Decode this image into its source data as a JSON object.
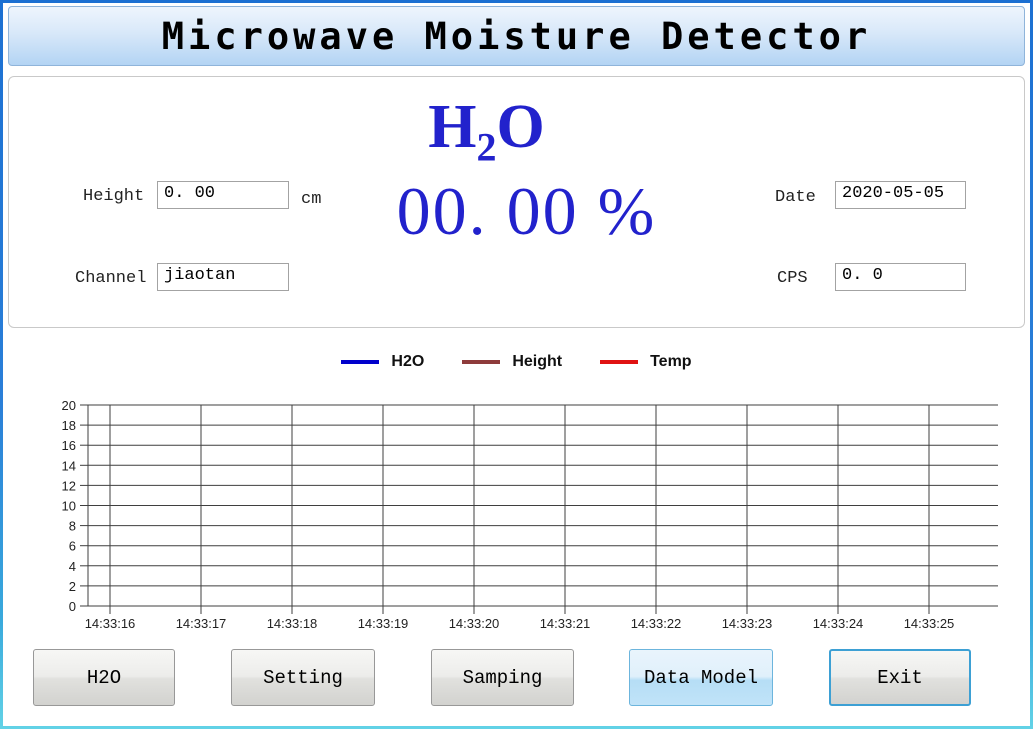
{
  "window": {
    "title": "Microwave Moisture Detector"
  },
  "readout": {
    "formula_main": "H",
    "formula_sub": "2",
    "formula_tail": "O",
    "value": "00. 00 %"
  },
  "fields": {
    "height": {
      "label": "Height",
      "value": "0. 00",
      "unit": "cm"
    },
    "channel": {
      "label": "Channel",
      "value": "jiaotan"
    },
    "date": {
      "label": "Date",
      "value": "2020-05-05"
    },
    "cps": {
      "label": "CPS",
      "value": "0. 0"
    }
  },
  "legend": [
    {
      "label": "H2O",
      "color": "#0000CC"
    },
    {
      "label": "Height",
      "color": "#8E3B3B"
    },
    {
      "label": "Temp",
      "color": "#E01212"
    }
  ],
  "chart_data": {
    "type": "line",
    "title": "",
    "xlabel": "",
    "ylabel": "",
    "ylim": [
      0,
      20
    ],
    "y_ticks": [
      0,
      2,
      4,
      6,
      8,
      10,
      12,
      14,
      16,
      18,
      20
    ],
    "x_ticks": [
      "14:33:16",
      "14:33:17",
      "14:33:18",
      "14:33:19",
      "14:33:20",
      "14:33:21",
      "14:33:22",
      "14:33:23",
      "14:33:24",
      "14:33:25"
    ],
    "grid": true,
    "legend_position": "top-center",
    "series": [
      {
        "name": "H2O",
        "color": "#0000CC",
        "values": []
      },
      {
        "name": "Height",
        "color": "#8E3B3B",
        "values": []
      },
      {
        "name": "Temp",
        "color": "#E01212",
        "values": []
      }
    ],
    "grid_color": "#3f3f3f"
  },
  "buttons": [
    {
      "label": "H2O"
    },
    {
      "label": "Setting"
    },
    {
      "label": "Samping"
    },
    {
      "label": "Data Model"
    },
    {
      "label": "Exit"
    }
  ]
}
